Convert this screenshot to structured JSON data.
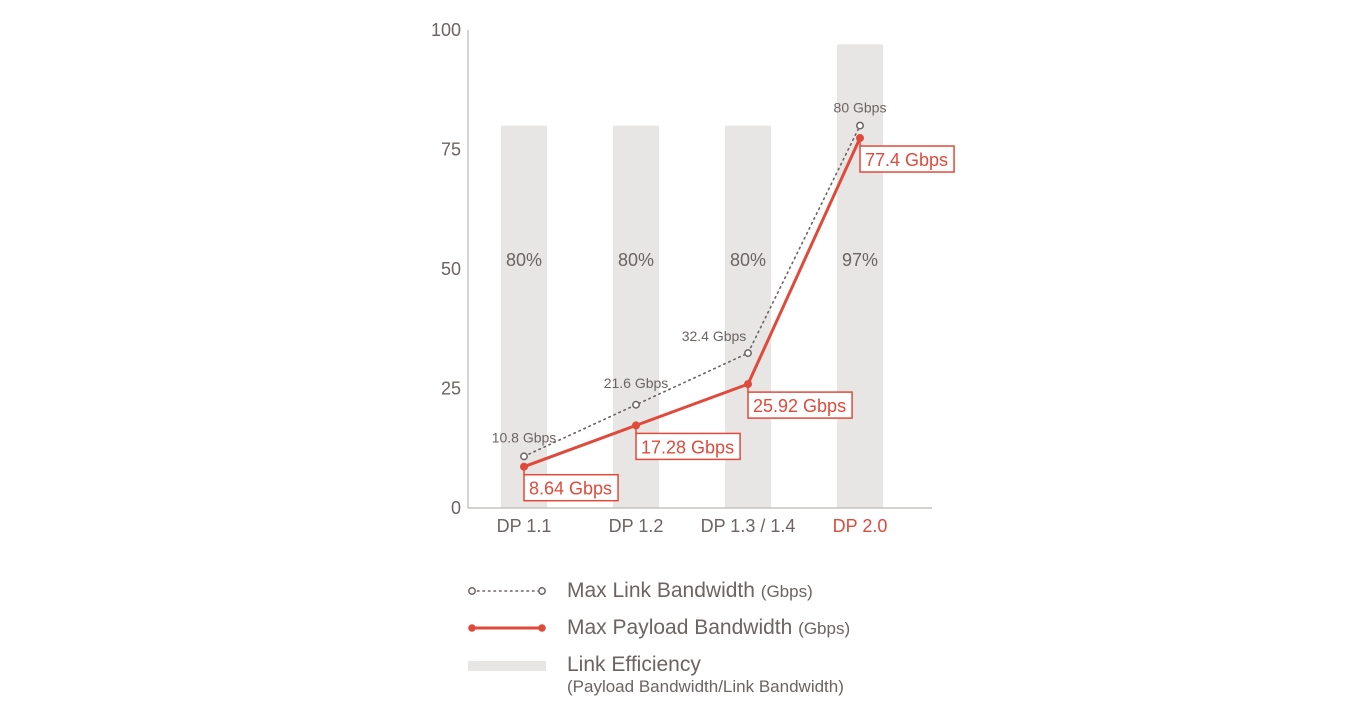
{
  "chart_data": {
    "type": "bar",
    "categories": [
      "DP 1.1",
      "DP 1.2",
      "DP 1.3 / 1.4",
      "DP 2.0"
    ],
    "highlight_category": "DP 2.0",
    "ylim": [
      0,
      100
    ],
    "yticks": [
      "0",
      "25",
      "50",
      "75",
      "100"
    ],
    "grid": false,
    "series": [
      {
        "name": "Link Efficiency",
        "kind": "bar",
        "values": [
          80,
          80,
          80,
          97
        ],
        "labels": [
          "80%",
          "80%",
          "80%",
          "97%"
        ],
        "color": "#e8e6e4"
      },
      {
        "name": "Max Link Bandwidth",
        "kind": "line",
        "style": "dotted",
        "values": [
          10.8,
          21.6,
          32.4,
          80
        ],
        "labels": [
          "10.8 Gbps",
          "21.6 Gbps",
          "32.4 Gbps",
          "80 Gbps"
        ],
        "color": "#6b6461"
      },
      {
        "name": "Max Payload Bandwidth",
        "kind": "line",
        "style": "solid",
        "values": [
          8.64,
          17.28,
          25.92,
          77.4
        ],
        "labels": [
          "8.64 Gbps",
          "17.28 Gbps",
          "25.92 Gbps",
          "77.4 Gbps"
        ],
        "color": "#e04a3a"
      }
    ],
    "legend": {
      "placement": "bottom",
      "items": [
        {
          "label": "Max Link Bandwidth",
          "unit": "(Gbps)",
          "sub": ""
        },
        {
          "label": "Max Payload Bandwidth",
          "unit": "(Gbps)",
          "sub": ""
        },
        {
          "label": "Link Efficiency",
          "unit": "",
          "sub": "(Payload Bandwidth/Link Bandwidth)"
        }
      ]
    }
  }
}
